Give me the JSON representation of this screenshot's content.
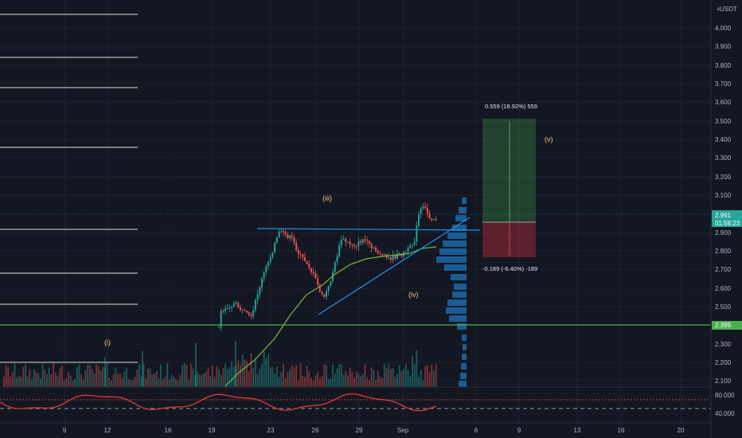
{
  "header": {
    "quote_currency": "USDT",
    "menu_icon": "chevron-icon"
  },
  "price_axis": {
    "labels": [
      "4.000",
      "3.900",
      "3.800",
      "3.700",
      "3.600",
      "3.500",
      "3.400",
      "3.300",
      "3.200",
      "3.100",
      "2.900",
      "2.800",
      "2.700",
      "2.600",
      "2.500",
      "2.400",
      "2.300",
      "2.200",
      "2.100"
    ],
    "current_price": "2.991",
    "countdown": "01:58:23",
    "level_tag": "2.399",
    "current_color": "#26a69a",
    "level_color": "#4caf50"
  },
  "time_axis": {
    "labels": [
      "9",
      "12",
      "16",
      "19",
      "23",
      "26",
      "29",
      "Sep",
      "6",
      "9",
      "13",
      "16",
      "20"
    ]
  },
  "oscillator_axis": {
    "labels": [
      "80.000",
      "40.000"
    ]
  },
  "annotations": {
    "wave_i": "(i)",
    "wave_iii": "(iii)",
    "wave_iv": "(iv)",
    "wave_v": "(v)"
  },
  "position_tool": {
    "target_label": "0.559 (18.92%) 559",
    "stop_label": "-0.189 (-6.40%) -189",
    "profit_color": "#4caf50",
    "loss_color": "#f23645"
  },
  "colors": {
    "up": "#26a69a",
    "down": "#ef5350",
    "trendline": "#2196f3",
    "ma": "#7cb342",
    "oscillator": "#e53935",
    "volume_profile": "#2196f3"
  }
}
